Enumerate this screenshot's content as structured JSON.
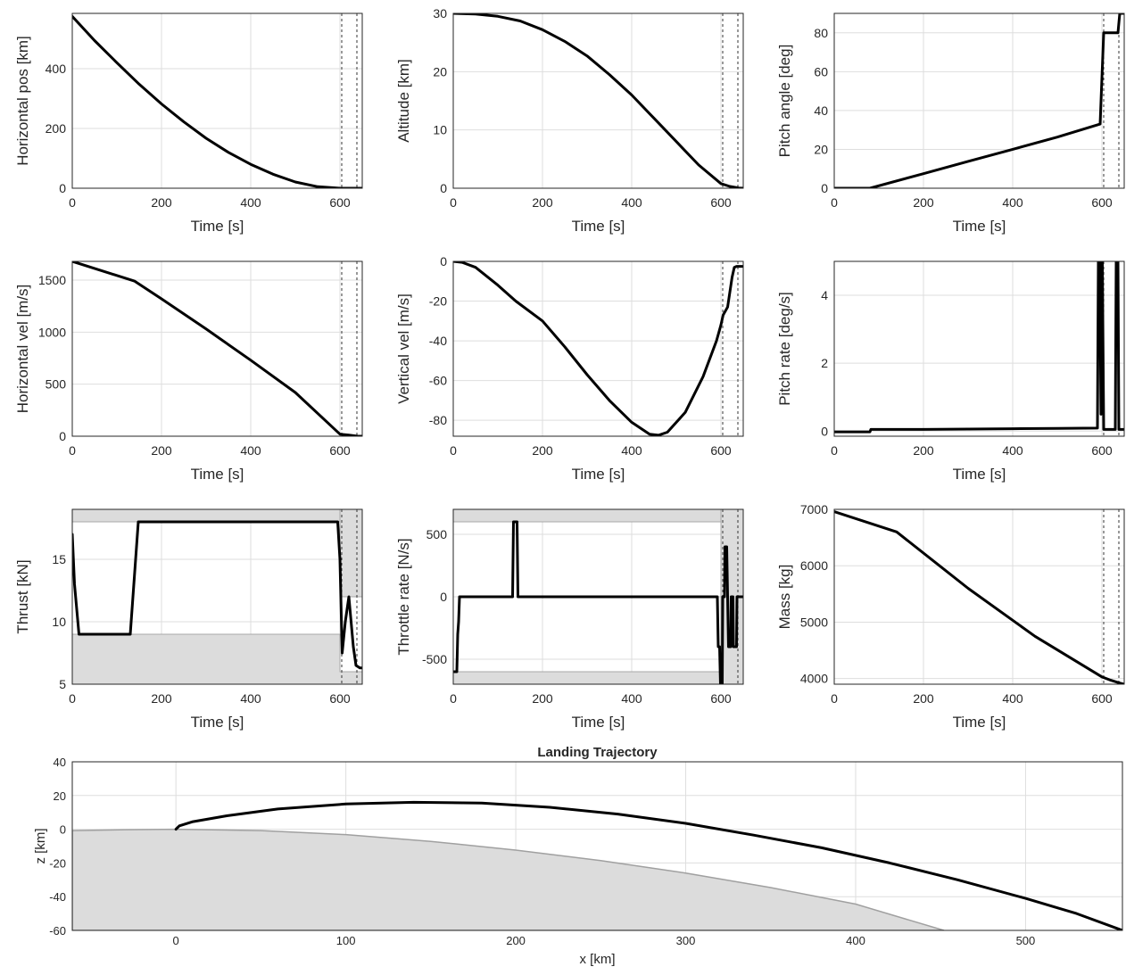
{
  "chart_data": [
    {
      "type": "line",
      "xlabel": "Time [s]",
      "ylabel": "Horizontal pos [km]",
      "xlim": [
        0,
        650
      ],
      "ylim": [
        0,
        585
      ],
      "xticks": [
        0,
        200,
        400,
        600
      ],
      "yticks": [
        0,
        200,
        400
      ],
      "grid": true,
      "vlines": [
        604,
        638
      ],
      "series": [
        {
          "x": [
            0,
            50,
            100,
            150,
            200,
            250,
            300,
            350,
            400,
            450,
            500,
            550,
            600,
            620,
            640,
            650
          ],
          "y": [
            575,
            494,
            420,
            348,
            282,
            222,
            167,
            120,
            80,
            47,
            21,
            5,
            0,
            0,
            0,
            0
          ]
        }
      ]
    },
    {
      "type": "line",
      "xlabel": "Time [s]",
      "ylabel": "Altitude [km]",
      "xlim": [
        0,
        650
      ],
      "ylim": [
        0,
        30
      ],
      "xticks": [
        0,
        200,
        400,
        600
      ],
      "yticks": [
        0,
        10,
        20,
        30
      ],
      "grid": true,
      "vlines": [
        604,
        638
      ],
      "series": [
        {
          "x": [
            0,
            50,
            100,
            150,
            200,
            250,
            300,
            350,
            400,
            450,
            500,
            550,
            600,
            620,
            640,
            650
          ],
          "y": [
            30,
            29.9,
            29.5,
            28.7,
            27.2,
            25.2,
            22.7,
            19.5,
            16,
            12,
            8,
            4,
            0.8,
            0.3,
            0.05,
            0
          ]
        }
      ]
    },
    {
      "type": "line",
      "xlabel": "Time [s]",
      "ylabel": "Pitch angle [deg]",
      "xlim": [
        0,
        650
      ],
      "ylim": [
        0,
        90
      ],
      "xticks": [
        0,
        200,
        400,
        600
      ],
      "yticks": [
        0,
        20,
        40,
        60,
        80
      ],
      "grid": true,
      "vlines": [
        604,
        638
      ],
      "series": [
        {
          "x": [
            0,
            80,
            200,
            300,
            400,
            500,
            596,
            604,
            636,
            640,
            650
          ],
          "y": [
            0,
            0,
            7.5,
            13.8,
            20,
            26.3,
            33,
            80,
            80,
            90,
            90
          ]
        }
      ]
    },
    {
      "type": "line",
      "xlabel": "Time [s]",
      "ylabel": "Horizontal vel [m/s]",
      "xlim": [
        0,
        650
      ],
      "ylim": [
        0,
        1680
      ],
      "xticks": [
        0,
        200,
        400,
        600
      ],
      "yticks": [
        0,
        500,
        1000,
        1500
      ],
      "grid": true,
      "vlines": [
        604,
        638
      ],
      "series": [
        {
          "x": [
            0,
            140,
            200,
            300,
            400,
            500,
            600,
            620,
            640,
            650
          ],
          "y": [
            1680,
            1490,
            1320,
            1030,
            730,
            420,
            20,
            10,
            0,
            0
          ]
        }
      ]
    },
    {
      "type": "line",
      "xlabel": "Time [s]",
      "ylabel": "Vertical vel [m/s]",
      "xlim": [
        0,
        650
      ],
      "ylim": [
        -88,
        0
      ],
      "xticks": [
        0,
        200,
        400,
        600
      ],
      "yticks": [
        -80,
        -60,
        -40,
        -20,
        0
      ],
      "grid": true,
      "vlines": [
        604,
        638
      ],
      "series": [
        {
          "x": [
            0,
            20,
            50,
            100,
            140,
            200,
            250,
            300,
            350,
            400,
            440,
            460,
            480,
            520,
            560,
            590,
            600,
            605,
            615,
            625,
            630,
            635,
            650
          ],
          "y": [
            0,
            -0.5,
            -3,
            -12,
            -20,
            -30,
            -43,
            -57,
            -70,
            -81,
            -87,
            -87.5,
            -86,
            -76,
            -58,
            -40,
            -32,
            -27,
            -23,
            -8,
            -3,
            -2.5,
            -2.5
          ]
        }
      ]
    },
    {
      "type": "line",
      "xlabel": "Time [s]",
      "ylabel": "Pitch rate [deg/s]",
      "xlim": [
        0,
        650
      ],
      "ylim": [
        -0.15,
        5
      ],
      "xticks": [
        0,
        200,
        400,
        600
      ],
      "yticks": [
        0,
        2,
        4
      ],
      "grid": true,
      "vlines": [
        604,
        638
      ],
      "series": [
        {
          "x": [
            0,
            80,
            82,
            200,
            300,
            400,
            500,
            590,
            592,
            595,
            598,
            601,
            604,
            630,
            632,
            636,
            638,
            650
          ],
          "y": [
            -0.02,
            -0.02,
            0.05,
            0.05,
            0.06,
            0.07,
            0.08,
            0.09,
            5,
            5,
            0.5,
            5,
            0.05,
            0.05,
            5,
            5,
            0.05,
            0.05
          ]
        }
      ]
    },
    {
      "type": "line",
      "xlabel": "Time [s]",
      "ylabel": "Thrust [kN]",
      "xlim": [
        0,
        650
      ],
      "ylim": [
        5,
        19
      ],
      "xticks": [
        0,
        200,
        400,
        600
      ],
      "yticks": [
        5,
        10,
        15
      ],
      "grid": true,
      "vlines": [
        604,
        638
      ],
      "bounds": [
        {
          "x": [
            0,
            600,
            600,
            650
          ],
          "lower": [
            5,
            5,
            5,
            5
          ],
          "upper": [
            9,
            9,
            6,
            6
          ]
        },
        {
          "x": [
            0,
            650
          ],
          "lower": [
            18,
            18
          ],
          "upper": [
            19,
            19
          ]
        },
        {
          "x": [
            600,
            650
          ],
          "lower": [
            12,
            12
          ],
          "upper": [
            19,
            19
          ]
        }
      ],
      "series": [
        {
          "x": [
            0,
            5,
            15,
            130,
            148,
            595,
            600,
            605,
            612,
            620,
            625,
            630,
            636,
            645,
            650
          ],
          "y": [
            17,
            13,
            9,
            9,
            18,
            18,
            15,
            7.5,
            10,
            12,
            10,
            8,
            6.5,
            6.3,
            6.3
          ]
        }
      ]
    },
    {
      "type": "line",
      "xlabel": "Time [s]",
      "ylabel": "Throttle rate [N/s]",
      "xlim": [
        0,
        650
      ],
      "ylim": [
        -700,
        700
      ],
      "xticks": [
        0,
        200,
        400,
        600
      ],
      "yticks": [
        -500,
        0,
        500
      ],
      "grid": true,
      "vlines": [
        604,
        638
      ],
      "bounds": [
        {
          "x": [
            0,
            650
          ],
          "lower": [
            -700,
            -700
          ],
          "upper": [
            -600,
            -600
          ]
        },
        {
          "x": [
            0,
            650
          ],
          "lower": [
            600,
            600
          ],
          "upper": [
            700,
            700
          ]
        },
        {
          "x": [
            600,
            650
          ],
          "lower": [
            -700,
            -700
          ],
          "upper": [
            700,
            700
          ]
        }
      ],
      "series": [
        {
          "x": [
            0,
            8,
            10,
            12,
            14,
            133,
            134,
            135,
            143,
            144,
            145,
            592,
            594,
            597,
            599,
            603,
            604,
            608,
            609,
            613,
            615,
            617,
            619,
            622,
            623,
            627,
            628,
            632,
            635,
            636,
            640,
            650
          ],
          "y": [
            -600,
            -600,
            -300,
            -200,
            0,
            0,
            300,
            600,
            600,
            300,
            0,
            0,
            -400,
            -400,
            -700,
            -700,
            0,
            0,
            400,
            400,
            0,
            -400,
            -400,
            -400,
            0,
            0,
            -400,
            -400,
            -400,
            0,
            0,
            0
          ]
        }
      ]
    },
    {
      "type": "line",
      "xlabel": "Time [s]",
      "ylabel": "Mass [kg]",
      "xlim": [
        0,
        650
      ],
      "ylim": [
        3900,
        7000
      ],
      "xticks": [
        0,
        200,
        400,
        600
      ],
      "yticks": [
        4000,
        5000,
        6000,
        7000
      ],
      "grid": true,
      "vlines": [
        604,
        638
      ],
      "series": [
        {
          "x": [
            0,
            140,
            300,
            450,
            600,
            620,
            640,
            650
          ],
          "y": [
            6960,
            6600,
            5600,
            4750,
            4030,
            3970,
            3920,
            3900
          ]
        }
      ]
    },
    {
      "type": "line",
      "title": "Landing Trajectory",
      "xlabel": "x [km]",
      "ylabel": "z [km]",
      "xlim": [
        -61,
        557
      ],
      "ylim": [
        -60,
        40
      ],
      "xticks": [
        0,
        100,
        200,
        300,
        400,
        500
      ],
      "yticks": [
        -60,
        -40,
        -20,
        0,
        20,
        40
      ],
      "grid": true,
      "ground": {
        "x": [
          -61,
          -30,
          0,
          50,
          100,
          150,
          200,
          250,
          300,
          350,
          400,
          452
        ],
        "z": [
          -0.8,
          -0.3,
          0,
          -0.8,
          -3.2,
          -7.2,
          -12.4,
          -18.6,
          -26,
          -34.6,
          -44.4,
          -60
        ]
      },
      "series": [
        {
          "x": [
            0,
            2,
            10,
            30,
            60,
            100,
            140,
            180,
            220,
            260,
            300,
            340,
            380,
            420,
            460,
            500,
            530,
            557
          ],
          "z": [
            0,
            2,
            4.5,
            8,
            12,
            15,
            16,
            15.5,
            13,
            9,
            3.5,
            -3.5,
            -11,
            -20,
            -30,
            -41,
            -50,
            -60
          ]
        }
      ]
    }
  ]
}
